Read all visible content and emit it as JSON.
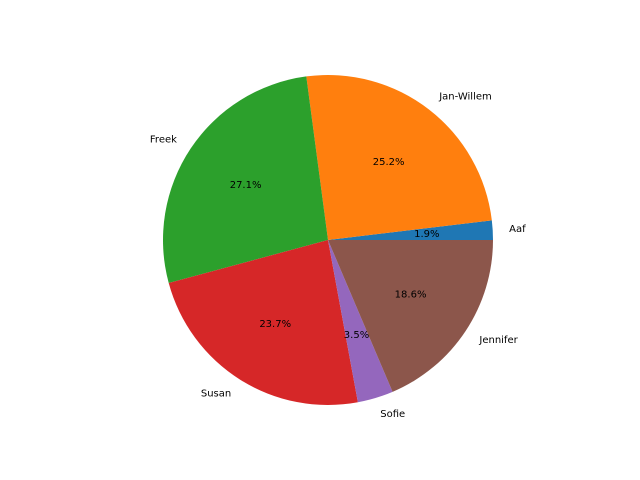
{
  "chart_data": {
    "type": "pie",
    "title": "",
    "labels": [
      "Aaf",
      "Jan-Willem",
      "Freek",
      "Susan",
      "Sofie",
      "Jennifer"
    ],
    "values": [
      1.9,
      25.2,
      27.1,
      23.7,
      3.5,
      18.6
    ],
    "pct_labels": [
      "1.9%",
      "25.2%",
      "27.1%",
      "23.7%",
      "3.5%",
      "18.6%"
    ],
    "colors": [
      "#1f77b4",
      "#ff7f0e",
      "#2ca02c",
      "#d62728",
      "#9467bd",
      "#8c564b"
    ],
    "start_angle_deg": 0,
    "direction": "counterclockwise"
  }
}
